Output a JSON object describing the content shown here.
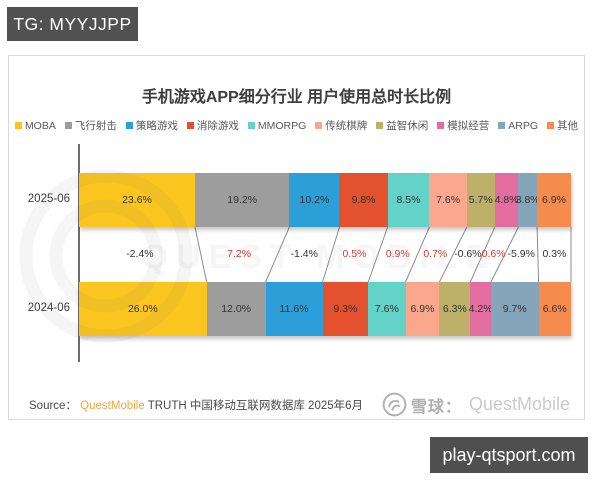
{
  "badge": {
    "label": "TG: MYYJJPP"
  },
  "site_box": {
    "label": "play-qtsport.com"
  },
  "chart_data": {
    "type": "bar",
    "subtype": "horizontal-stacked-100pct",
    "title": "手机游戏APP细分行业 用户使用总时长比例",
    "categories": [
      "MOBA",
      "飞行射击",
      "策略游戏",
      "消除游戏",
      "MMORPG",
      "传统棋牌",
      "益智休闲",
      "模拟经营",
      "ARPG",
      "其他"
    ],
    "colors": [
      "#FBC51F",
      "#9D9D9D",
      "#2D9FD8",
      "#E3512E",
      "#63D2C8",
      "#FBA78E",
      "#BDB169",
      "#E26D9E",
      "#84A5BA",
      "#F68B4E"
    ],
    "series": [
      {
        "name": "2025-06",
        "values": [
          23.6,
          19.2,
          10.2,
          9.8,
          8.5,
          7.6,
          5.7,
          4.8,
          3.8,
          6.9
        ]
      },
      {
        "name": "2024-06",
        "values": [
          26.0,
          12.0,
          11.6,
          9.3,
          7.6,
          6.9,
          6.3,
          4.2,
          9.7,
          6.6
        ]
      }
    ],
    "changes": {
      "labels": [
        "-2.4%",
        "7.2%",
        "-1.4%",
        "0.5%",
        "0.9%",
        "0.7%",
        "-0.6%",
        "0.6%",
        "-5.9%",
        "0.3%"
      ],
      "is_red": [
        false,
        true,
        false,
        true,
        true,
        true,
        false,
        true,
        false,
        false
      ]
    },
    "value_suffix": "%",
    "legend_position": "top",
    "red_color": "#d43c33",
    "dark_color": "#333333"
  },
  "source": {
    "prefix": "Source：",
    "brand": "QuestMobile",
    "rest": " TRUTH 中国移动互联网数据库 2025年6月"
  },
  "footer_logo": {
    "xueqiu": "雪球：",
    "questmobile": "QuestMobile"
  }
}
